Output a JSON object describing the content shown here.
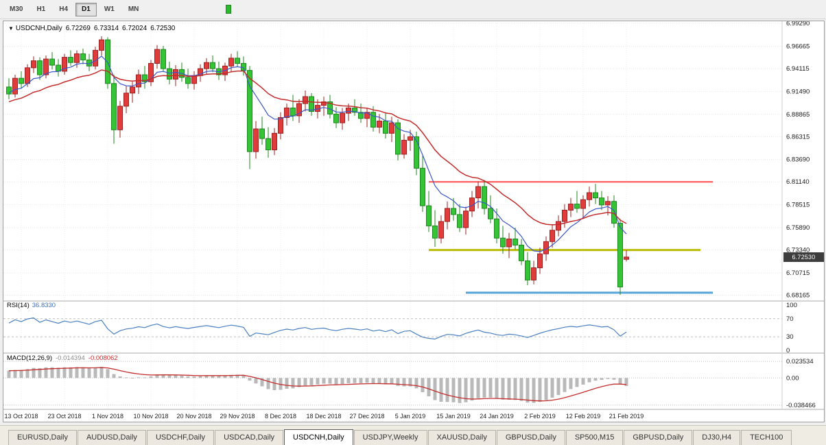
{
  "toolbar": {
    "timeframes": [
      {
        "label": "M30",
        "active": false
      },
      {
        "label": "H1",
        "active": false
      },
      {
        "label": "H4",
        "active": false
      },
      {
        "label": "D1",
        "active": true
      },
      {
        "label": "W1",
        "active": false
      },
      {
        "label": "MN",
        "active": false
      }
    ]
  },
  "chart": {
    "title_symbol": "USDCNH,Daily",
    "ohlc": {
      "open": "6.72269",
      "high": "6.73314",
      "low": "6.72024",
      "close": "6.72530"
    },
    "price_badge": "6.72530",
    "price_axis_labels": [
      "6.99290",
      "6.96665",
      "6.94115",
      "6.91490",
      "6.88865",
      "6.86315",
      "6.83690",
      "6.81140",
      "6.78515",
      "6.75890",
      "6.73340",
      "6.70715",
      "6.68165"
    ],
    "colors": {
      "up_fill": "#e03c3c",
      "up_stroke": "#9e1f1f",
      "down_fill": "#35c435",
      "down_stroke": "#1c871c",
      "ma_fast": "#3a56c8",
      "ma_slow": "#c32b2b",
      "grid": "#e7e7e7",
      "grid_v": "#ededed",
      "rsi_line": "#4a7fc1",
      "macd_hist": "#b9b9b9",
      "macd_signal": "#c32b2b",
      "level_dash": "#bdbdbd",
      "axis_text": "#1a1a1a"
    }
  },
  "indicators": {
    "rsi": {
      "label": "RSI(14)",
      "value": "36.8330",
      "axis_labels": [
        "100",
        "70",
        "30",
        "0"
      ],
      "levels": [
        70,
        30
      ]
    },
    "macd": {
      "label": "MACD(12,26,9)",
      "value_main": "-0.014394",
      "value_signal": "-0.008062",
      "axis_labels": [
        "0.023534",
        "0.00",
        "-0.038466"
      ]
    }
  },
  "tabs": [
    {
      "label": "EURUSD,Daily",
      "active": false
    },
    {
      "label": "AUDUSD,Daily",
      "active": false
    },
    {
      "label": "USDCHF,Daily",
      "active": false
    },
    {
      "label": "USDCAD,Daily",
      "active": false
    },
    {
      "label": "USDCNH,Daily",
      "active": true
    },
    {
      "label": "USDJPY,Weekly",
      "active": false
    },
    {
      "label": "XAUUSD,Daily",
      "active": false
    },
    {
      "label": "GBPUSD,Daily",
      "active": false
    },
    {
      "label": "SP500,M15",
      "active": false
    },
    {
      "label": "GBPUSD,Daily",
      "active": false
    },
    {
      "label": "DJ30,H4",
      "active": false
    },
    {
      "label": "TECH100",
      "active": false
    }
  ],
  "chart_data": {
    "type": "candlestick",
    "symbol": "USDCNH",
    "timeframe": "Daily",
    "y_range": [
      6.68165,
      6.9929
    ],
    "ma": {
      "fast_period": 8,
      "slow_period": 21
    },
    "rsi_period": 14,
    "macd_params": [
      12,
      26,
      9
    ],
    "x_labels": [
      {
        "i": 2,
        "text": "13 Oct 2018"
      },
      {
        "i": 9,
        "text": "23 Oct 2018"
      },
      {
        "i": 16,
        "text": "1 Nov 2018"
      },
      {
        "i": 23,
        "text": "10 Nov 2018"
      },
      {
        "i": 30,
        "text": "20 Nov 2018"
      },
      {
        "i": 37,
        "text": "29 Nov 2018"
      },
      {
        "i": 44,
        "text": "8 Dec 2018"
      },
      {
        "i": 51,
        "text": "18 Dec 2018"
      },
      {
        "i": 58,
        "text": "27 Dec 2018"
      },
      {
        "i": 65,
        "text": "5 Jan 2019"
      },
      {
        "i": 72,
        "text": "15 Jan 2019"
      },
      {
        "i": 79,
        "text": "24 Jan 2019"
      },
      {
        "i": 86,
        "text": "2 Feb 2019"
      },
      {
        "i": 93,
        "text": "12 Feb 2019"
      },
      {
        "i": 100,
        "text": "21 Feb 2019"
      }
    ],
    "h_lines": [
      {
        "name": "resistance-line",
        "price": 6.8114,
        "x1_bar": 68,
        "x2_bar": 114,
        "color": "#ff4a4a",
        "width": 2
      },
      {
        "name": "support-line-mid",
        "price": 6.7334,
        "x1_bar": 68,
        "x2_bar": 112,
        "color": "#b9bb00",
        "width": 3
      },
      {
        "name": "support-line-low",
        "price": 6.6845,
        "x1_bar": 74,
        "x2_bar": 114,
        "color": "#56a4d8",
        "width": 3
      }
    ],
    "candles": [
      [
        6.92,
        6.93,
        6.906,
        6.912
      ],
      [
        6.912,
        6.934,
        6.908,
        6.93
      ],
      [
        6.93,
        6.938,
        6.918,
        6.924
      ],
      [
        6.924,
        6.946,
        6.92,
        6.942
      ],
      [
        6.942,
        6.955,
        6.936,
        6.95
      ],
      [
        6.95,
        6.954,
        6.928,
        6.934
      ],
      [
        6.934,
        6.956,
        6.93,
        6.952
      ],
      [
        6.952,
        6.96,
        6.94,
        6.945
      ],
      [
        6.945,
        6.952,
        6.932,
        6.938
      ],
      [
        6.938,
        6.958,
        6.934,
        6.954
      ],
      [
        6.954,
        6.962,
        6.944,
        6.948
      ],
      [
        6.948,
        6.962,
        6.942,
        6.958
      ],
      [
        6.958,
        6.964,
        6.946,
        6.951
      ],
      [
        6.951,
        6.958,
        6.938,
        6.944
      ],
      [
        6.944,
        6.966,
        6.94,
        6.962
      ],
      [
        6.962,
        6.978,
        6.956,
        6.974
      ],
      [
        6.974,
        6.977,
        6.918,
        6.924
      ],
      [
        6.924,
        6.934,
        6.855,
        6.871
      ],
      [
        6.871,
        6.904,
        6.862,
        6.898
      ],
      [
        6.898,
        6.921,
        6.89,
        6.913
      ],
      [
        6.913,
        6.926,
        6.902,
        6.92
      ],
      [
        6.92,
        6.94,
        6.912,
        6.934
      ],
      [
        6.934,
        6.944,
        6.918,
        6.926
      ],
      [
        6.926,
        6.951,
        6.921,
        6.947
      ],
      [
        6.947,
        6.968,
        6.941,
        6.963
      ],
      [
        6.963,
        6.967,
        6.937,
        6.941
      ],
      [
        6.941,
        6.949,
        6.923,
        6.929
      ],
      [
        6.929,
        6.945,
        6.921,
        6.94
      ],
      [
        6.94,
        6.948,
        6.926,
        6.931
      ],
      [
        6.931,
        6.941,
        6.918,
        6.924
      ],
      [
        6.924,
        6.938,
        6.917,
        6.933
      ],
      [
        6.933,
        6.946,
        6.926,
        6.941
      ],
      [
        6.941,
        6.953,
        6.934,
        6.948
      ],
      [
        6.948,
        6.956,
        6.937,
        6.941
      ],
      [
        6.941,
        6.949,
        6.928,
        6.934
      ],
      [
        6.934,
        6.948,
        6.927,
        6.944
      ],
      [
        6.944,
        6.958,
        6.937,
        6.953
      ],
      [
        6.953,
        6.961,
        6.943,
        6.947
      ],
      [
        6.947,
        6.955,
        6.933,
        6.939
      ],
      [
        6.939,
        6.944,
        6.826,
        6.846
      ],
      [
        6.846,
        6.881,
        6.838,
        6.872
      ],
      [
        6.872,
        6.886,
        6.854,
        6.861
      ],
      [
        6.861,
        6.874,
        6.839,
        6.848
      ],
      [
        6.848,
        6.873,
        6.842,
        6.867
      ],
      [
        6.867,
        6.891,
        6.86,
        6.885
      ],
      [
        6.885,
        6.901,
        6.876,
        6.896
      ],
      [
        6.896,
        6.911,
        6.881,
        6.887
      ],
      [
        6.887,
        6.906,
        6.879,
        6.901
      ],
      [
        6.901,
        6.916,
        6.892,
        6.909
      ],
      [
        6.909,
        6.913,
        6.887,
        6.892
      ],
      [
        6.892,
        6.906,
        6.884,
        6.899
      ],
      [
        6.899,
        6.909,
        6.887,
        6.903
      ],
      [
        6.903,
        6.911,
        6.884,
        6.889
      ],
      [
        6.889,
        6.897,
        6.873,
        6.879
      ],
      [
        6.879,
        6.896,
        6.871,
        6.89
      ],
      [
        6.89,
        6.901,
        6.881,
        6.896
      ],
      [
        6.896,
        6.906,
        6.887,
        6.891
      ],
      [
        6.891,
        6.901,
        6.879,
        6.884
      ],
      [
        6.884,
        6.896,
        6.874,
        6.891
      ],
      [
        6.891,
        6.898,
        6.869,
        6.874
      ],
      [
        6.874,
        6.889,
        6.867,
        6.881
      ],
      [
        6.881,
        6.891,
        6.861,
        6.867
      ],
      [
        6.867,
        6.886,
        6.857,
        6.879
      ],
      [
        6.879,
        6.883,
        6.836,
        6.843
      ],
      [
        6.843,
        6.866,
        6.838,
        6.859
      ],
      [
        6.859,
        6.871,
        6.847,
        6.863
      ],
      [
        6.863,
        6.869,
        6.819,
        6.827
      ],
      [
        6.827,
        6.841,
        6.777,
        6.784
      ],
      [
        6.784,
        6.801,
        6.754,
        6.761
      ],
      [
        6.761,
        6.779,
        6.737,
        6.747
      ],
      [
        6.747,
        6.773,
        6.741,
        6.766
      ],
      [
        6.766,
        6.789,
        6.757,
        6.781
      ],
      [
        6.781,
        6.793,
        6.767,
        6.774
      ],
      [
        6.774,
        6.786,
        6.754,
        6.759
      ],
      [
        6.759,
        6.783,
        6.751,
        6.778
      ],
      [
        6.778,
        6.801,
        6.771,
        6.793
      ],
      [
        6.793,
        6.812,
        6.781,
        6.806
      ],
      [
        6.806,
        6.8135,
        6.774,
        6.781
      ],
      [
        6.781,
        6.796,
        6.764,
        6.769
      ],
      [
        6.769,
        6.781,
        6.741,
        6.747
      ],
      [
        6.747,
        6.761,
        6.729,
        6.737
      ],
      [
        6.737,
        6.753,
        6.724,
        6.746
      ],
      [
        6.746,
        6.759,
        6.734,
        6.739
      ],
      [
        6.739,
        6.746,
        6.716,
        6.721
      ],
      [
        6.721,
        6.731,
        6.693,
        6.699
      ],
      [
        6.699,
        6.721,
        6.694,
        6.713
      ],
      [
        6.713,
        6.736,
        6.706,
        6.729
      ],
      [
        6.729,
        6.749,
        6.721,
        6.743
      ],
      [
        6.743,
        6.763,
        6.736,
        6.756
      ],
      [
        6.756,
        6.773,
        6.749,
        6.766
      ],
      [
        6.766,
        6.786,
        6.759,
        6.779
      ],
      [
        6.779,
        6.793,
        6.771,
        6.786
      ],
      [
        6.786,
        6.801,
        6.776,
        6.781
      ],
      [
        6.781,
        6.796,
        6.769,
        6.791
      ],
      [
        6.791,
        6.806,
        6.783,
        6.799
      ],
      [
        6.799,
        6.809,
        6.786,
        6.793
      ],
      [
        6.793,
        6.801,
        6.779,
        6.785
      ],
      [
        6.785,
        6.795,
        6.773,
        6.789
      ],
      [
        6.789,
        6.796,
        6.759,
        6.764
      ],
      [
        6.764,
        6.769,
        6.682,
        6.691
      ],
      [
        6.72269,
        6.73314,
        6.72024,
        6.7253
      ]
    ]
  }
}
